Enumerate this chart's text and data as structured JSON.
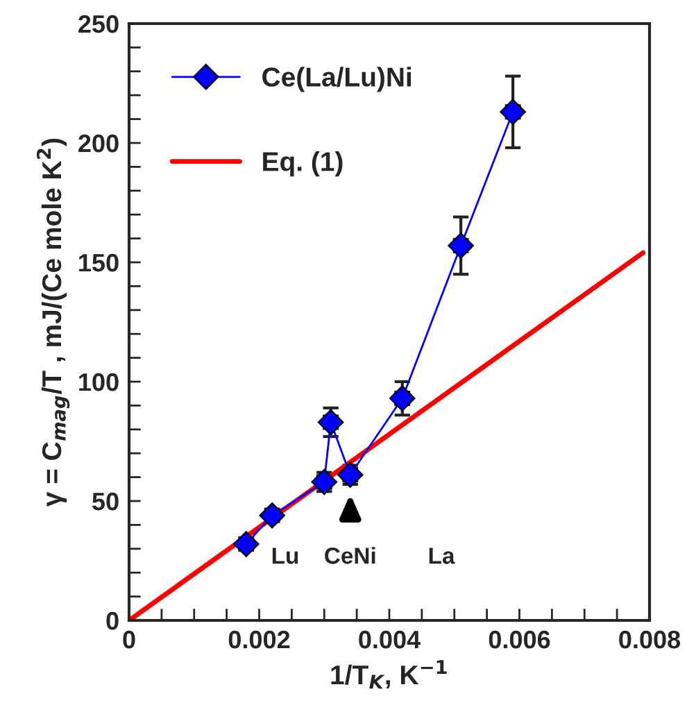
{
  "chart_data": {
    "type": "line",
    "xlabel": "1/T$_{K}$, K$^{−1}$",
    "ylabel": "γ = C$_{mag}$/T , mJ/(Ce mole K$^{2}$)",
    "series": [
      {
        "name": "Ce(La/Lu)Ni",
        "color": "#0000ff",
        "marker": "diamond",
        "x": [
          0.0018,
          0.0022,
          0.003,
          0.0031,
          0.0034,
          0.0042,
          0.0051,
          0.0059
        ],
        "values": [
          32,
          44,
          58,
          83,
          61,
          93,
          157,
          213
        ],
        "errors": [
          null,
          null,
          4,
          6,
          4,
          7,
          12,
          15
        ],
        "xerrors": [
          0.0001,
          0.0001,
          0.0001,
          0.0001,
          0.0001,
          0.0001,
          0.0001,
          0.0001
        ]
      },
      {
        "name": "Eq. (1)",
        "color": "#ff0000",
        "marker": "none",
        "x": [
          0,
          0.0079
        ],
        "values": [
          0,
          154
        ]
      }
    ],
    "annotations": [
      "Lu",
      {
        "text": "CeNi",
        "x": 0.0034,
        "y": 53
      },
      "La"
    ],
    "xlim": [
      0,
      0.008
    ],
    "ylim": [
      0,
      250
    ],
    "xticks": [
      0,
      {
        "value": 0.0005,
        "label": null
      },
      {
        "value": 0.001,
        "label": null
      },
      {
        "value": 0.0015,
        "label": null
      },
      0.002,
      {
        "value": 0.0025,
        "label": null
      },
      {
        "value": 0.003,
        "label": null
      },
      {
        "value": 0.0035,
        "label": null
      },
      0.004,
      {
        "value": 0.0045,
        "label": null
      },
      {
        "value": 0.005,
        "label": null
      },
      {
        "value": 0.0055,
        "label": null
      },
      0.006,
      {
        "value": 0.0065,
        "label": null
      },
      {
        "value": 0.007,
        "label": null
      },
      {
        "value": 0.0075,
        "label": null
      },
      0.008
    ],
    "yticks": [
      0,
      {
        "value": 10,
        "label": null
      },
      {
        "value": 20,
        "label": null
      },
      {
        "value": 30,
        "label": null
      },
      {
        "value": 40,
        "label": null
      },
      50,
      {
        "value": 60,
        "label": null
      },
      {
        "value": 70,
        "label": null
      },
      {
        "value": 80,
        "label": null
      },
      {
        "value": 90,
        "label": null
      },
      100,
      {
        "value": 110,
        "label": null
      },
      {
        "value": 120,
        "label": null
      },
      {
        "value": 130,
        "label": null
      },
      {
        "value": 140,
        "label": null
      },
      150,
      {
        "value": 160,
        "label": null
      },
      {
        "value": 170,
        "label": null
      },
      {
        "value": 180,
        "label": null
      },
      {
        "value": 190,
        "label": null
      },
      200,
      {
        "value": 210,
        "label": null
      },
      {
        "value": 220,
        "label": null
      },
      {
        "value": 230,
        "label": null
      },
      {
        "value": 240,
        "label": null
      },
      250
    ],
    "grid": false,
    "legend": "top left",
    "line_style": "solid"
  }
}
